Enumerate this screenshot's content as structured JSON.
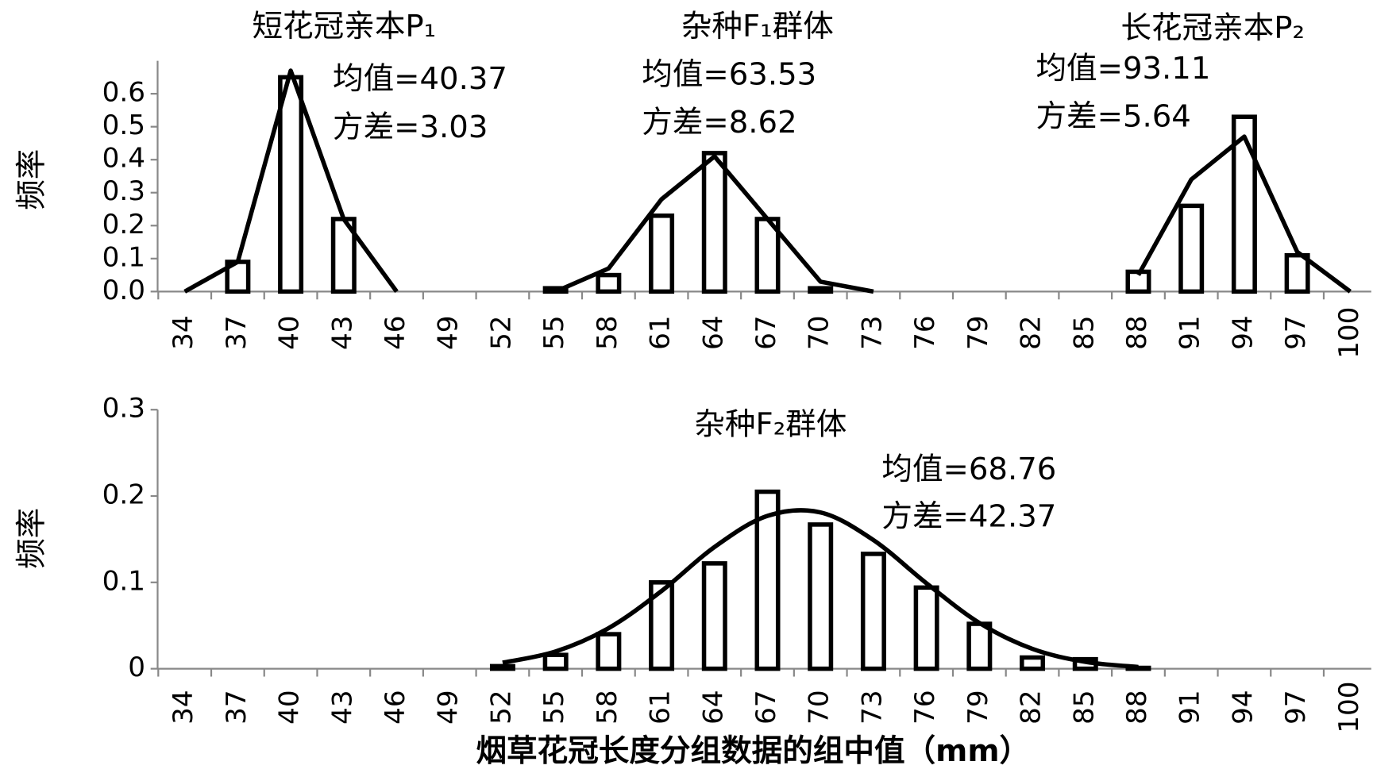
{
  "chart_data": [
    {
      "type": "bar",
      "ylabel": "频率",
      "categories": [
        34,
        37,
        40,
        43,
        46,
        49,
        52,
        55,
        58,
        61,
        64,
        67,
        70,
        73,
        76,
        79,
        82,
        85,
        88,
        91,
        94,
        97,
        100
      ],
      "ylim": [
        0,
        0.7
      ],
      "yticks": [
        {
          "value": 0,
          "label": "0.0"
        },
        0.1,
        0.2,
        0.3,
        0.4,
        0.5,
        0.6
      ],
      "series": [
        {
          "name": "短花冠亲本P₁",
          "color": "#000000",
          "values": [
            0,
            0.09,
            0.65,
            0.22,
            null,
            null,
            null,
            null,
            null,
            null,
            null,
            null,
            null,
            null,
            null,
            null,
            null,
            null,
            null,
            null,
            null,
            null,
            null
          ],
          "line_values": [
            0,
            0.09,
            0.67,
            0.22,
            0,
            null,
            null,
            null,
            null,
            null,
            null,
            null,
            null,
            null,
            null,
            null,
            null,
            null,
            null,
            null,
            null,
            null,
            null
          ],
          "annotations": [
            "均值=40.37",
            "方差=3.03"
          ]
        },
        {
          "name": "杂种F₁群体",
          "color": "#000000",
          "values": [
            null,
            null,
            null,
            null,
            null,
            null,
            null,
            0.01,
            0.05,
            0.23,
            0.42,
            0.22,
            0.01,
            null,
            null,
            null,
            null,
            null,
            null,
            null,
            null,
            null,
            null
          ],
          "line_values": [
            null,
            null,
            null,
            null,
            null,
            null,
            null,
            0,
            0.07,
            0.28,
            0.41,
            0.22,
            0.03,
            0,
            null,
            null,
            null,
            null,
            null,
            null,
            null,
            null,
            null
          ],
          "annotations": [
            "均值=63.53",
            "方差=8.62"
          ]
        },
        {
          "name": "长花冠亲本P₂",
          "color": "#000000",
          "values": [
            null,
            null,
            null,
            null,
            null,
            null,
            null,
            null,
            null,
            null,
            null,
            null,
            null,
            null,
            null,
            null,
            null,
            null,
            0.06,
            0.26,
            0.53,
            0.11,
            0
          ],
          "line_values": [
            null,
            null,
            null,
            null,
            null,
            null,
            null,
            null,
            null,
            null,
            null,
            null,
            null,
            null,
            null,
            null,
            null,
            null,
            0.05,
            0.34,
            0.47,
            0.12,
            0
          ],
          "annotations": [
            "均值=93.11",
            "方差=5.64"
          ]
        }
      ]
    },
    {
      "type": "bar",
      "ylabel": "频率",
      "xlabel": "烟草花冠长度分组数据的组中值（mm）",
      "categories": [
        34,
        37,
        40,
        43,
        46,
        49,
        52,
        55,
        58,
        61,
        64,
        67,
        70,
        73,
        76,
        79,
        82,
        85,
        88,
        91,
        94,
        97,
        100
      ],
      "ylim": [
        0,
        0.3
      ],
      "yticks": [
        0,
        0.1,
        0.2,
        0.3
      ],
      "series": [
        {
          "name": "杂种F₂群体",
          "color": "#000000",
          "values": [
            null,
            null,
            null,
            null,
            null,
            null,
            0.003,
            0.016,
            0.04,
            0.1,
            0.122,
            0.205,
            0.167,
            0.133,
            0.094,
            0.052,
            0.013,
            0.011,
            0.001,
            null,
            null,
            null,
            null
          ],
          "curve_values": [
            null,
            null,
            null,
            null,
            null,
            null,
            0.007,
            0.02,
            0.047,
            0.09,
            0.141,
            0.177,
            0.181,
            0.149,
            0.099,
            0.053,
            0.023,
            0.008,
            0.002,
            null,
            null,
            null,
            null
          ],
          "annotations": [
            "均值=68.76",
            "方差=42.37"
          ]
        }
      ]
    }
  ]
}
